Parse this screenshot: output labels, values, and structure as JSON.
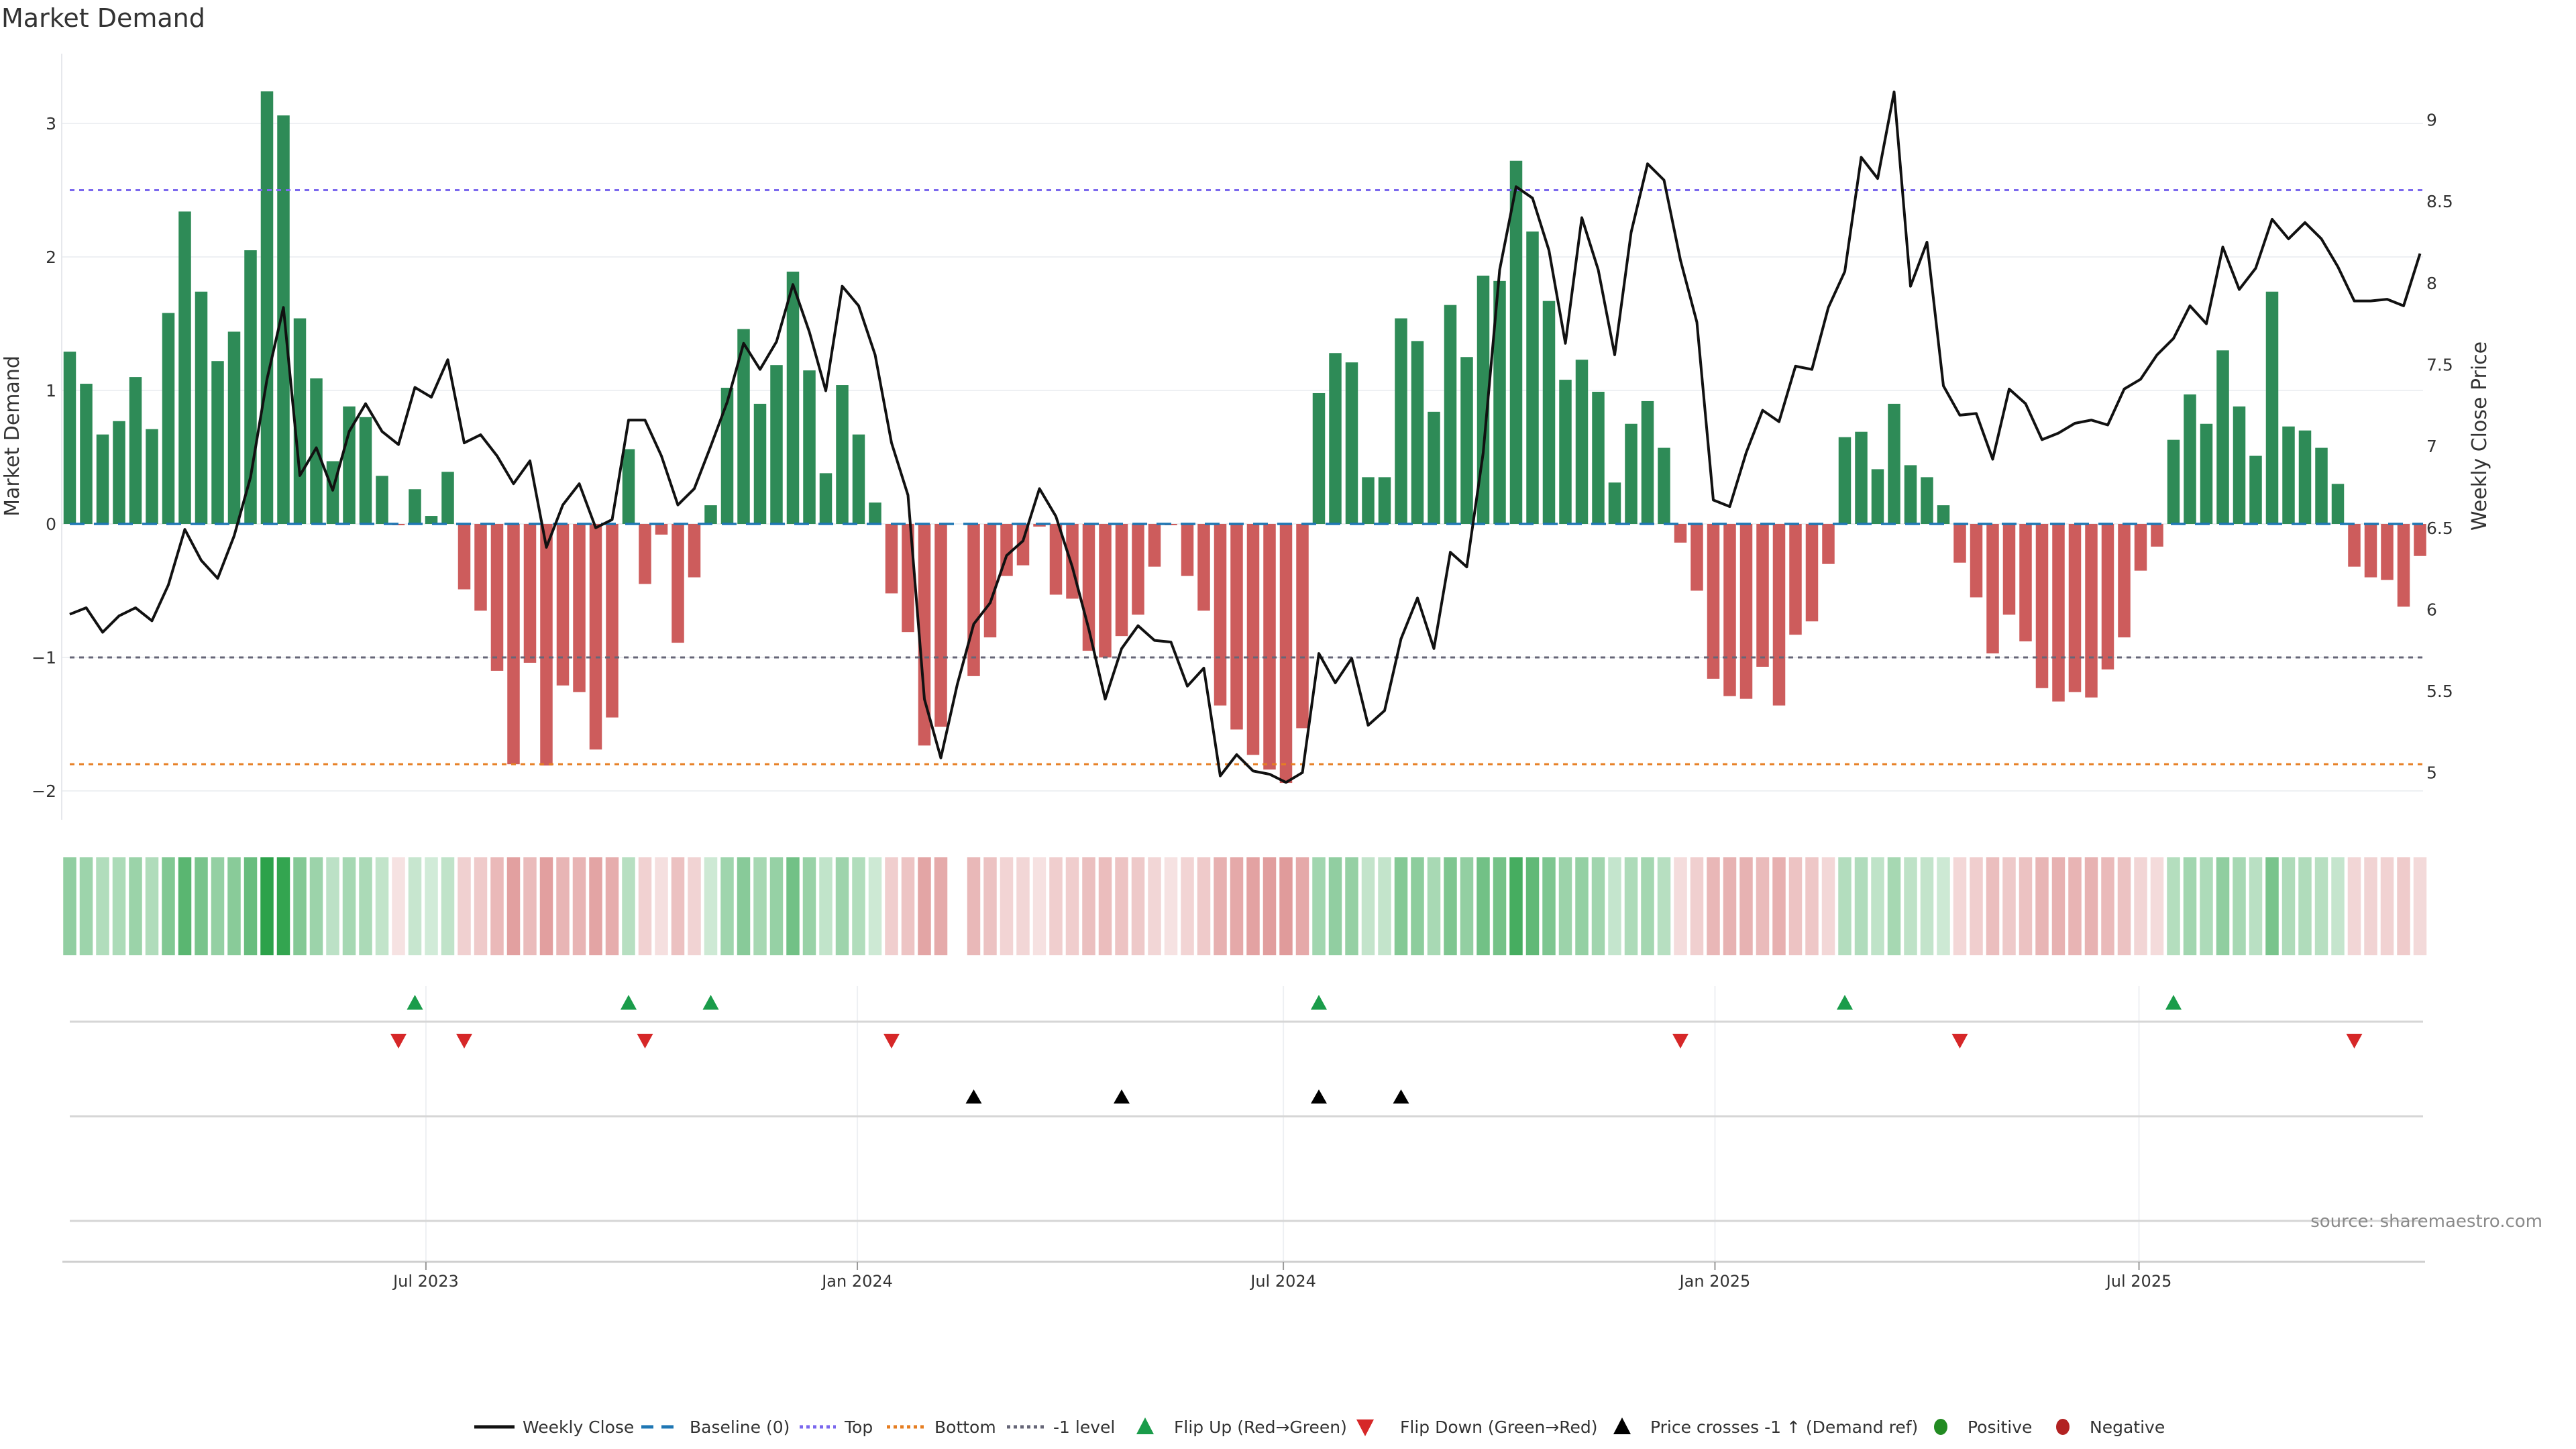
{
  "chart_data": {
    "type": "bar",
    "title": "Market Demand",
    "ylabel": "Market Demand",
    "y2label": "Weekly Close Price",
    "ylim": [
      -2.2,
      3.5
    ],
    "y2lim": [
      4.8,
      9.3
    ],
    "yticks": [
      "3",
      "2",
      "1",
      "0",
      "−1",
      "−2"
    ],
    "ytick_values": [
      3,
      2,
      1,
      0,
      -1,
      -2
    ],
    "y2ticks": [
      "9",
      "8.5",
      "8",
      "7.5",
      "7",
      "6.5",
      "6",
      "5.5",
      "5"
    ],
    "y2tick_values": [
      9,
      8.5,
      8,
      7.5,
      7,
      6.5,
      6,
      5.5,
      5
    ],
    "xticks": [
      {
        "label": "Jul 2023",
        "week": 21.67
      },
      {
        "label": "Jan 2024",
        "week": 47.92
      },
      {
        "label": "Jul 2024",
        "week": 73.84
      },
      {
        "label": "Jan 2025",
        "week": 100.1
      },
      {
        "label": "Jul 2025",
        "week": 125.9
      }
    ],
    "reference_levels": {
      "top": 2.5,
      "bottom": -1.8,
      "minus_one": -1,
      "baseline": 0
    },
    "demand": [
      1.29,
      1.05,
      0.67,
      0.77,
      1.1,
      0.71,
      1.58,
      2.34,
      1.74,
      1.22,
      1.44,
      2.05,
      3.24,
      3.06,
      1.54,
      1.09,
      0.47,
      0.88,
      0.8,
      0.36,
      -0.01,
      0.26,
      0.06,
      0.39,
      -0.49,
      -0.65,
      -1.1,
      -1.8,
      -1.04,
      -1.81,
      -1.21,
      -1.26,
      -1.69,
      -1.45,
      0.56,
      -0.45,
      -0.08,
      -0.89,
      -0.4,
      0.14,
      1.02,
      1.46,
      0.9,
      1.19,
      1.89,
      1.15,
      0.38,
      1.04,
      0.67,
      0.16,
      -0.52,
      -0.81,
      -1.66,
      -1.52,
      null,
      -1.14,
      -0.85,
      -0.39,
      -0.31,
      -0.02,
      -0.53,
      -0.56,
      -0.95,
      -1.0,
      -0.84,
      -0.68,
      -0.32,
      -0.01,
      -0.39,
      -0.65,
      -1.36,
      -1.54,
      -1.73,
      -1.84,
      -1.94,
      -1.53,
      0.98,
      1.28,
      1.21,
      0.35,
      0.35,
      1.54,
      1.37,
      0.84,
      1.64,
      1.25,
      1.86,
      1.82,
      2.72,
      2.19,
      1.67,
      1.08,
      1.23,
      0.99,
      0.31,
      0.75,
      0.92,
      0.57,
      -0.14,
      -0.5,
      -1.16,
      -1.29,
      -1.31,
      -1.07,
      -1.36,
      -0.83,
      -0.73,
      -0.3,
      0.65,
      0.69,
      0.41,
      0.9,
      0.44,
      0.35,
      0.14,
      -0.29,
      -0.55,
      -0.97,
      -0.68,
      -0.88,
      -1.23,
      -1.33,
      -1.26,
      -1.3,
      -1.09,
      -0.85,
      -0.35,
      -0.17,
      0.63,
      0.97,
      0.75,
      1.3,
      0.88,
      0.51,
      1.74,
      0.73,
      0.7,
      0.57,
      0.3,
      -0.32,
      -0.4,
      -0.42,
      -0.62,
      -0.24
    ],
    "weekly_close": [
      5.97,
      6.01,
      5.86,
      5.96,
      6.01,
      5.93,
      6.15,
      6.49,
      6.3,
      6.19,
      6.45,
      6.81,
      7.41,
      7.85,
      6.82,
      6.99,
      6.73,
      7.09,
      7.26,
      7.09,
      7.01,
      7.36,
      7.3,
      7.53,
      7.02,
      7.07,
      6.94,
      6.77,
      6.91,
      6.38,
      6.64,
      6.77,
      6.5,
      6.55,
      7.16,
      7.16,
      6.94,
      6.64,
      6.74,
      7.0,
      7.27,
      7.63,
      7.47,
      7.64,
      7.99,
      7.7,
      7.34,
      7.98,
      7.86,
      7.56,
      7.02,
      6.7,
      5.45,
      5.09,
      5.54,
      5.91,
      6.04,
      6.33,
      6.42,
      6.74,
      6.57,
      6.26,
      5.88,
      5.45,
      5.76,
      5.9,
      5.81,
      5.8,
      5.53,
      5.64,
      4.98,
      5.11,
      5.01,
      4.99,
      4.94,
      5.0,
      5.73,
      5.55,
      5.7,
      5.29,
      5.38,
      5.82,
      6.07,
      5.76,
      6.35,
      6.26,
      6.96,
      8.08,
      8.59,
      8.52,
      8.2,
      7.63,
      8.4,
      8.08,
      7.56,
      8.31,
      8.73,
      8.63,
      8.14,
      7.76,
      6.67,
      6.63,
      6.96,
      7.22,
      7.15,
      7.49,
      7.47,
      7.85,
      8.07,
      8.77,
      8.64,
      9.17,
      7.98,
      8.25,
      7.37,
      7.19,
      7.2,
      6.92,
      7.35,
      7.26,
      7.04,
      7.08,
      7.14,
      7.16,
      7.13,
      7.35,
      7.41,
      7.56,
      7.66,
      7.86,
      7.75,
      8.22,
      7.96,
      8.09,
      8.39,
      8.27,
      8.37,
      8.27,
      8.1,
      7.89,
      7.89,
      7.9,
      7.86,
      8.18
    ],
    "flip_up_weeks": [
      22,
      35,
      40,
      77,
      109,
      129
    ],
    "flip_down_weeks": [
      21,
      25,
      36,
      51,
      99,
      116,
      140
    ],
    "price_cross_weeks": [
      56,
      65,
      77,
      82
    ],
    "colors": {
      "positive_bar": "#2e8b57",
      "negative_bar": "#cd5c5c",
      "heat_positive": "#2ca24a",
      "heat_negative": "#cd5c5c",
      "line": "#111111",
      "baseline": "#1f77b4",
      "top": "#7b68ee",
      "bottom": "#e67e22",
      "minus_one": "#666677",
      "flip_up": "#1a9c4a",
      "flip_down": "#d62728",
      "cross": "#000000",
      "positive_dot": "#228b22",
      "negative_dot": "#b22222"
    },
    "legend": [
      "Weekly Close",
      "Baseline (0)",
      "Top",
      "Bottom",
      "-1 level",
      "Flip Up (Red→Green)",
      "Flip Down (Green→Red)",
      "Price crosses -1 ↑ (Demand ref)",
      "Positive",
      "Negative"
    ],
    "source": "source: sharemaestro.com"
  }
}
